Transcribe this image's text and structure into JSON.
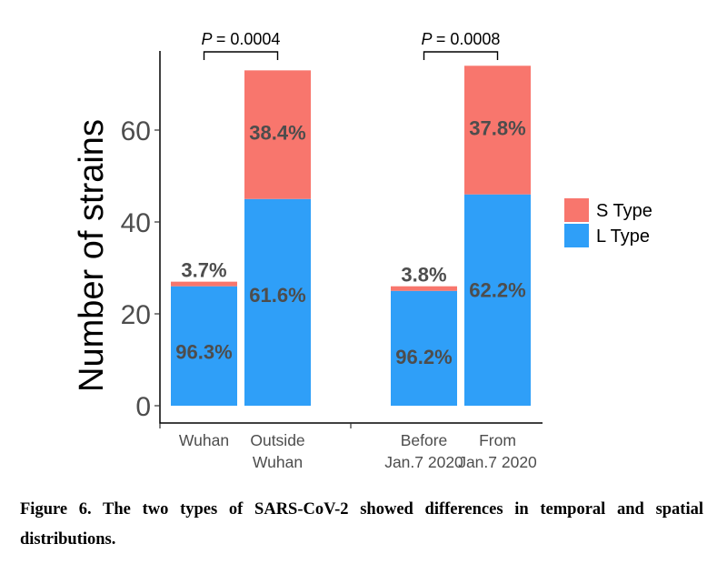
{
  "chart_data": {
    "type": "bar",
    "stacked": true,
    "ylabel": "Number of strains",
    "ylim": [
      0,
      74
    ],
    "yticks": [
      0,
      20,
      40,
      60
    ],
    "grid": false,
    "legend_position": "right",
    "categories": [
      [
        "Wuhan"
      ],
      [
        "Outside",
        "Wuhan"
      ],
      [
        "Before",
        "Jan.7 2020"
      ],
      [
        "From",
        "Jan.7 2020"
      ]
    ],
    "series": [
      {
        "name": "L Type",
        "color": "#2f9ff8",
        "values": [
          26,
          45,
          25,
          46
        ],
        "labels": [
          "96.3%",
          "61.6%",
          "96.2%",
          "62.2%"
        ]
      },
      {
        "name": "S Type",
        "color": "#f8766d",
        "values": [
          1,
          28,
          1,
          28
        ],
        "labels": [
          "3.7%",
          "38.4%",
          "3.8%",
          "37.8%"
        ]
      }
    ],
    "annotations": [
      {
        "text": "= 0.0004",
        "prefix": "P",
        "between": [
          0,
          1
        ]
      },
      {
        "text": "= 0.0008",
        "prefix": "P",
        "between": [
          2,
          3
        ]
      }
    ]
  },
  "caption": "Figure 6. The two types of SARS-CoV-2 showed differences in temporal and spatial distributions."
}
